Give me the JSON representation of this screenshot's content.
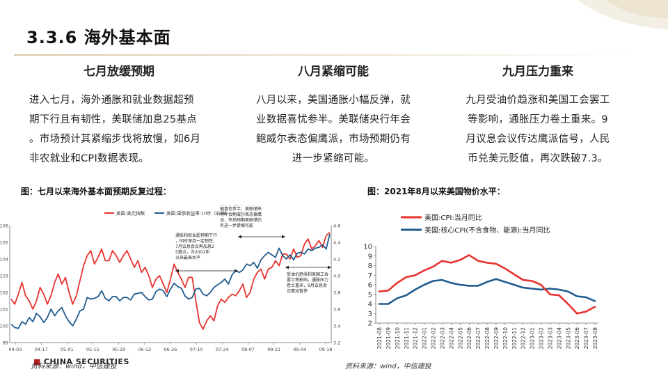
{
  "page": {
    "title": "3.3.6 海外基本面"
  },
  "columns": [
    {
      "heading": "七月放缓预期",
      "lines": [
        "进入七月，海外通胀和就业数据超预",
        "期下行且有韧性，美联储加息25基点",
        "。市场预计其紧缩步伐将放慢，如6月",
        "非农就业和CPI数据表现。"
      ]
    },
    {
      "heading": "八月紧缩可能",
      "lines": [
        "八月以来，美国通胀小幅反弹，就",
        "业数据喜忧参半。美联储央行年会",
        "鲍威尔表态偏鹰派，市场预期仍有",
        "进一步紧缩可能。"
      ]
    },
    {
      "heading": "九月压力重来",
      "lines": [
        "九月受油价趋涨和美国工会罢工",
        "等影响，通胀压力卷土重来。9",
        "月议息会议传达鹰派信号，人民",
        "币兑美元贬值，再次跌破7.3。"
      ]
    }
  ],
  "figures": {
    "fig1_title": "图：七月以来海外基本面预期反复过程：",
    "fig2_title": "图：2021年8月以来美国物价水平：",
    "fig1_source": "资料来源：wind，中信建投",
    "fig2_source": "资料来源：wind，中信建投",
    "logo_text": "CHINA SECURITIES"
  },
  "colors": {
    "red": "#e8322e",
    "blue": "#1f5b8f",
    "axis": "#666666"
  },
  "chart_data": [
    {
      "type": "line",
      "series": [
        {
          "name": "美国:美元指数",
          "axis": "left",
          "values": [
            101.6,
            101.3,
            101.9,
            102.6,
            101.8,
            101.5,
            101.0,
            101.5,
            102.3,
            101.9,
            101.3,
            101.8,
            102.6,
            103.1,
            102.5,
            102.9,
            102.0,
            101.3,
            101.8,
            102.7,
            103.6,
            104.2,
            104.5,
            103.7,
            104.1,
            104.6,
            103.9,
            103.9,
            104.5,
            104.2,
            103.8,
            104.2,
            104.5,
            104.0,
            103.5,
            103.9,
            103.2,
            103.5,
            103.0,
            102.3,
            102.8,
            103.0,
            102.5,
            102.0,
            102.8,
            103.7,
            103.2,
            102.8,
            102.3,
            102.9,
            102.9,
            101.5,
            100.2,
            99.8,
            100.3,
            100.6,
            100.3,
            101.2,
            101.6,
            101.4,
            101.7,
            101.9,
            101.8,
            102.1,
            102.5,
            101.7,
            102.0,
            102.8,
            103.2,
            103.4,
            102.8,
            103.4,
            103.5,
            103.9,
            103.6,
            104.3,
            104.3,
            104.0,
            104.6,
            104.1,
            104.2,
            104.9,
            105.2,
            104.6,
            104.8,
            105.1,
            104.7,
            105.4,
            105.6
          ]
        },
        {
          "name": "美国:国债收益率:10年（右轴）",
          "axis": "right",
          "values": [
            3.42,
            3.38,
            3.37,
            3.45,
            3.42,
            3.5,
            3.45,
            3.55,
            3.51,
            3.44,
            3.5,
            3.6,
            3.52,
            3.58,
            3.62,
            3.52,
            3.45,
            3.4,
            3.48,
            3.58,
            3.6,
            3.74,
            3.72,
            3.73,
            3.75,
            3.82,
            3.73,
            3.7,
            3.75,
            3.75,
            3.7,
            3.74,
            3.74,
            3.71,
            3.78,
            3.79,
            3.8,
            3.75,
            3.71,
            3.72,
            3.81,
            3.84,
            3.82,
            3.75,
            3.84,
            3.91,
            3.87,
            3.85,
            3.76,
            3.72,
            3.74,
            3.84,
            3.85,
            3.78,
            3.76,
            3.8,
            3.86,
            3.89,
            3.92,
            3.96,
            3.9,
            4.01,
            4.06,
            4.04,
            4.07,
            4.14,
            4.12,
            4.16,
            4.09,
            4.19,
            4.24,
            4.28,
            4.25,
            4.22,
            4.33,
            4.24,
            4.2,
            4.25,
            4.19,
            4.27,
            4.28,
            4.26,
            4.32,
            4.3,
            4.33,
            4.34,
            4.37,
            4.32,
            4.5
          ]
        }
      ],
      "x_ticks": [
        "04-03",
        "04-17",
        "05-01",
        "05-15",
        "05-29",
        "06-12",
        "06-26",
        "07-10",
        "07-24",
        "08-07",
        "08-21",
        "09-04",
        "09-18"
      ],
      "ylim_left": [
        99,
        106
      ],
      "yticks_left": [
        99,
        100,
        101,
        102,
        103,
        104,
        105,
        106
      ],
      "ylim_right": [
        3.2,
        4.6
      ],
      "yticks_right": [
        3.2,
        3.4,
        3.6,
        3.8,
        4.0,
        4.2,
        4.4,
        4.6
      ],
      "legend_position": "top",
      "annotations": [
        {
          "label": "通胀和就业超预期下行，同时保持一定韧性，7月议息会议再加息25基点，为2001年以来最高水平"
        },
        {
          "label": "通胀小幅反弹，就业数据喜忧参半；美联储央行年会鲍威尔表态偏鹰派，市场预期美联储仍有进一步紧缩可能"
        },
        {
          "label": "受油价趋涨和美国工会罢工等影响，通胀压力卷土重来，9月议息会议鹰派暂停"
        }
      ]
    },
    {
      "type": "line",
      "series": [
        {
          "name": "美国:CPI:当月同比",
          "values": [
            5.3,
            5.4,
            6.2,
            6.8,
            7.0,
            7.5,
            7.9,
            8.5,
            8.3,
            8.6,
            9.1,
            8.5,
            8.3,
            8.2,
            7.7,
            7.1,
            6.5,
            6.4,
            6.0,
            5.0,
            4.9,
            4.0,
            3.0,
            3.2,
            3.7
          ]
        },
        {
          "name": "美国:核心CPI(不含食物、能源):当月同比",
          "values": [
            4.0,
            4.0,
            4.6,
            4.9,
            5.5,
            6.0,
            6.4,
            6.5,
            6.2,
            6.0,
            5.9,
            5.9,
            6.3,
            6.6,
            6.3,
            6.0,
            5.7,
            5.6,
            5.5,
            5.6,
            5.5,
            5.3,
            4.8,
            4.7,
            4.3
          ]
        }
      ],
      "x_ticks": [
        "2021-08",
        "2021-09",
        "2021-10",
        "2021-11",
        "2021-12",
        "2022-01",
        "2022-02",
        "2022-03",
        "2022-04",
        "2022-05",
        "2022-06",
        "2022-07",
        "2022-08",
        "2022-09",
        "2022-10",
        "2022-11",
        "2022-12",
        "2023-01",
        "2023-02",
        "2023-03",
        "2023-04",
        "2023-05",
        "2023-06",
        "2023-07",
        "2023-08"
      ],
      "ylim": [
        2,
        10
      ],
      "yticks": [
        2,
        3,
        4,
        5,
        6,
        7,
        8,
        9,
        10
      ],
      "legend_position": "top-left"
    }
  ]
}
